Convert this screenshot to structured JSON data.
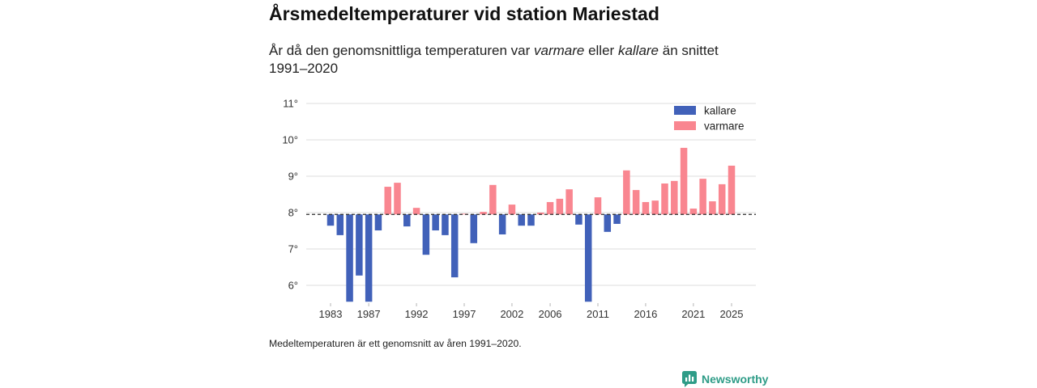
{
  "chart_data": {
    "type": "bar",
    "title": "Årsmedeltemperaturer vid station Mariestad",
    "subtitle": {
      "part1": "År då den genomsnittliga temperaturen var",
      "warmer": "varmare",
      "part2": "eller",
      "colder": "kallare",
      "part3": "än snittet",
      "period": "1991–2020"
    },
    "categories": [
      1983,
      1984,
      1985,
      1986,
      1987,
      1988,
      1989,
      1990,
      1991,
      1992,
      1993,
      1994,
      1995,
      1996,
      1997,
      1998,
      1999,
      2000,
      2001,
      2002,
      2003,
      2004,
      2005,
      2006,
      2007,
      2008,
      2009,
      2010,
      2011,
      2012,
      2013,
      2014,
      2015,
      2016,
      2017,
      2018,
      2019,
      2020,
      2021,
      2022,
      2023,
      2024,
      2025
    ],
    "values": [
      7.64,
      7.38,
      5.55,
      6.27,
      5.55,
      7.51,
      8.71,
      8.82,
      7.62,
      8.13,
      6.84,
      7.51,
      7.38,
      6.22,
      7.97,
      7.16,
      8.02,
      8.76,
      7.4,
      8.22,
      7.64,
      7.64,
      8.0,
      8.29,
      8.38,
      8.64,
      7.67,
      5.55,
      8.42,
      7.47,
      7.69,
      9.16,
      8.62,
      8.29,
      8.33,
      8.8,
      8.87,
      9.78,
      8.11,
      8.93,
      8.31,
      8.78,
      9.29
    ],
    "mean": 7.95,
    "ylim": [
      5.55,
      11.2
    ],
    "y_ticks": [
      11,
      10,
      9,
      8,
      7,
      6
    ],
    "y_tick_labels": [
      "11°",
      "10°",
      "9°",
      "8°",
      "7°",
      "6°"
    ],
    "x_tick_labels": [
      "1983",
      "1987",
      "1992",
      "1997",
      "2002",
      "2006",
      "2011",
      "2016",
      "2021",
      "2025"
    ],
    "grid": true,
    "legend_position": "top-right",
    "legend": [
      {
        "label": "kallare",
        "color": "#4161b9"
      },
      {
        "label": "varmare",
        "color": "#f98690"
      }
    ],
    "note": "Medeltemperaturen är ett genomsnitt av åren 1991–2020."
  },
  "branding": {
    "name": "Newsworthy",
    "color": "#2e9c87"
  }
}
